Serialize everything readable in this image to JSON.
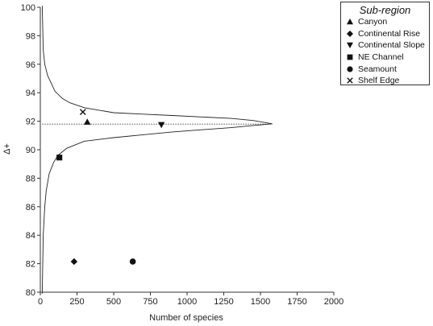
{
  "chart_data": {
    "type": "scatter",
    "title": "",
    "xlabel": "Number of species",
    "ylabel": "Δ+",
    "xlim": [
      0,
      2000
    ],
    "ylim": [
      80,
      100
    ],
    "xticks": [
      0,
      250,
      500,
      750,
      1000,
      1250,
      1500,
      1750,
      2000
    ],
    "yticks": [
      80,
      82,
      84,
      86,
      88,
      90,
      92,
      94,
      96,
      98,
      100
    ],
    "mean_line": 91.8,
    "funnel_upper": [
      [
        13,
        100.1
      ],
      [
        20,
        97
      ],
      [
        30,
        96
      ],
      [
        50,
        95.2
      ],
      [
        100,
        94.1
      ],
      [
        150,
        93.6
      ],
      [
        200,
        93.3
      ],
      [
        300,
        92.95
      ],
      [
        500,
        92.6
      ],
      [
        700,
        92.5
      ],
      [
        900,
        92.4
      ],
      [
        1100,
        92.3
      ],
      [
        1300,
        92.2
      ],
      [
        1450,
        92.05
      ],
      [
        1580,
        91.82
      ]
    ],
    "funnel_lower": [
      [
        13,
        79.9
      ],
      [
        20,
        84
      ],
      [
        30,
        86
      ],
      [
        40,
        87.1
      ],
      [
        60,
        88.3
      ],
      [
        90,
        89.1
      ],
      [
        120,
        89.6
      ],
      [
        180,
        90.1
      ],
      [
        300,
        90.6
      ],
      [
        500,
        90.85
      ],
      [
        700,
        91.05
      ],
      [
        900,
        91.25
      ],
      [
        1100,
        91.4
      ],
      [
        1300,
        91.55
      ],
      [
        1450,
        91.7
      ],
      [
        1580,
        91.82
      ]
    ],
    "series": [
      {
        "name": "Canyon",
        "marker": "triangle-up",
        "points": [
          [
            320,
            91.95
          ]
        ]
      },
      {
        "name": "Continental Rise",
        "marker": "diamond",
        "points": [
          [
            230,
            82.15
          ]
        ]
      },
      {
        "name": "Continental Slope",
        "marker": "triangle-down",
        "points": [
          [
            825,
            91.75
          ]
        ]
      },
      {
        "name": "NE Channel",
        "marker": "square",
        "points": [
          [
            130,
            89.45
          ]
        ]
      },
      {
        "name": "Seamount",
        "marker": "circle",
        "points": [
          [
            630,
            82.15
          ]
        ]
      },
      {
        "name": "Shelf Edge",
        "marker": "x",
        "points": [
          [
            290,
            92.65
          ]
        ]
      }
    ],
    "legend": {
      "title": "Sub-region",
      "placement": "top-right"
    }
  }
}
